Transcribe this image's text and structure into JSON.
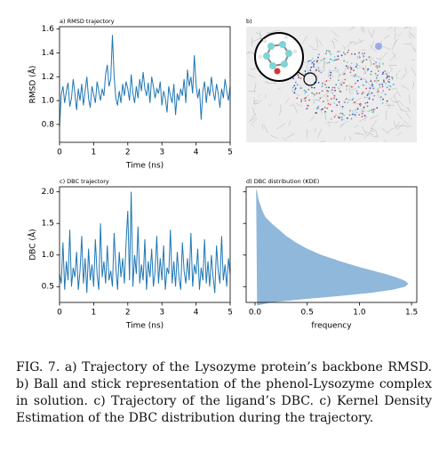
{
  "chart_data": [
    {
      "type": "line",
      "title": "a) RMSD trajectory",
      "xlabel": "Time (ns)",
      "ylabel": "RMSD (Å)",
      "color": "#1f77b4",
      "xlim": [
        0,
        5
      ],
      "xticks": [
        0,
        1,
        2,
        3,
        4,
        5
      ],
      "ylim": [
        0.65,
        1.62
      ],
      "yticks": [
        0.8,
        {
          "value": 1,
          "label": "1.0"
        },
        1.2,
        1.4,
        1.6
      ],
      "x": [
        0,
        0.05,
        0.1,
        0.15,
        0.2,
        0.25,
        0.3,
        0.35,
        0.4,
        0.45,
        0.5,
        0.55,
        0.6,
        0.65,
        0.7,
        0.75,
        0.8,
        0.85,
        0.9,
        0.95,
        1,
        1.05,
        1.1,
        1.15,
        1.2,
        1.25,
        1.3,
        1.35,
        1.4,
        1.45,
        1.5,
        1.55,
        1.6,
        1.65,
        1.7,
        1.75,
        1.8,
        1.85,
        1.9,
        1.95,
        2,
        2.05,
        2.1,
        2.15,
        2.2,
        2.25,
        2.3,
        2.35,
        2.4,
        2.45,
        2.5,
        2.55,
        2.6,
        2.65,
        2.7,
        2.75,
        2.8,
        2.85,
        2.9,
        2.95,
        3,
        3.05,
        3.1,
        3.15,
        3.2,
        3.25,
        3.3,
        3.35,
        3.4,
        3.45,
        3.5,
        3.55,
        3.6,
        3.65,
        3.7,
        3.75,
        3.8,
        3.85,
        3.9,
        3.95,
        4,
        4.05,
        4.1,
        4.15,
        4.2,
        4.25,
        4.3,
        4.35,
        4.4,
        4.45,
        4.5,
        4.55,
        4.6,
        4.65,
        4.7,
        4.75,
        4.8,
        4.85,
        4.9,
        4.95,
        5
      ],
      "values": [
        0.78,
        1.05,
        1.12,
        0.98,
        1.08,
        1.15,
        0.95,
        1.02,
        1.18,
        1.06,
        0.92,
        1.1,
        1.0,
        1.14,
        0.96,
        1.08,
        1.2,
        1.02,
        0.94,
        1.12,
        1.05,
        0.98,
        1.16,
        1.08,
        1.0,
        1.1,
        1.04,
        1.22,
        1.3,
        1.12,
        1.18,
        1.55,
        1.2,
        1.02,
        0.96,
        1.08,
        0.98,
        1.14,
        1.04,
        1.16,
        1.1,
        1.0,
        1.22,
        1.06,
        0.98,
        1.12,
        1.02,
        1.18,
        1.08,
        1.24,
        1.1,
        1.04,
        1.15,
        0.98,
        1.2,
        1.12,
        1.02,
        1.1,
        1.06,
        1.16,
        0.96,
        1.08,
        1.02,
        0.9,
        1.12,
        1.04,
        0.98,
        1.14,
        0.88,
        1.06,
        1.0,
        1.1,
        1.04,
        1.18,
        0.98,
        1.26,
        1.12,
        1.2,
        1.06,
        1.38,
        1.14,
        1.02,
        1.1,
        0.84,
        1.08,
        1.16,
        0.98,
        1.12,
        1.04,
        1.2,
        1.08,
        1.0,
        1.14,
        1.06,
        0.94,
        1.1,
        1.02,
        1.18,
        1.08,
        1.0,
        1.12
      ]
    },
    {
      "type": "line",
      "title": "c) DBC trajectory",
      "xlabel": "Time (ns)",
      "ylabel": "DBC (Å)",
      "color": "#1f77b4",
      "xlim": [
        0,
        5
      ],
      "xticks": [
        0,
        1,
        2,
        3,
        4,
        5
      ],
      "ylim": [
        0.25,
        2.08
      ],
      "yticks": [
        0.5,
        {
          "value": 1,
          "label": "1.0"
        },
        1.5,
        {
          "value": 2,
          "label": "2.0"
        }
      ],
      "x": [
        0,
        0.05,
        0.1,
        0.15,
        0.2,
        0.25,
        0.3,
        0.35,
        0.4,
        0.45,
        0.5,
        0.55,
        0.6,
        0.65,
        0.7,
        0.75,
        0.8,
        0.85,
        0.9,
        0.95,
        1,
        1.05,
        1.1,
        1.15,
        1.2,
        1.25,
        1.3,
        1.35,
        1.4,
        1.45,
        1.5,
        1.55,
        1.6,
        1.65,
        1.7,
        1.75,
        1.8,
        1.85,
        1.9,
        1.95,
        2,
        2.05,
        2.1,
        2.15,
        2.2,
        2.25,
        2.3,
        2.35,
        2.4,
        2.45,
        2.5,
        2.55,
        2.6,
        2.65,
        2.7,
        2.75,
        2.8,
        2.85,
        2.9,
        2.95,
        3,
        3.05,
        3.1,
        3.15,
        3.2,
        3.25,
        3.3,
        3.35,
        3.4,
        3.45,
        3.5,
        3.55,
        3.6,
        3.65,
        3.7,
        3.75,
        3.8,
        3.85,
        3.9,
        3.95,
        4,
        4.05,
        4.1,
        4.15,
        4.2,
        4.25,
        4.3,
        4.35,
        4.4,
        4.45,
        4.5,
        4.55,
        4.6,
        4.65,
        4.7,
        4.75,
        4.8,
        4.85,
        4.9,
        4.95,
        5
      ],
      "values": [
        0.7,
        0.55,
        1.2,
        0.45,
        0.9,
        0.6,
        1.4,
        0.5,
        0.8,
        0.65,
        1.05,
        0.45,
        0.75,
        1.3,
        0.55,
        0.95,
        0.4,
        1.1,
        0.6,
        0.85,
        0.5,
        1.25,
        0.7,
        0.45,
        1.5,
        0.65,
        0.9,
        0.55,
        1.15,
        0.6,
        0.75,
        0.5,
        1.35,
        0.8,
        0.45,
        1.05,
        0.65,
        0.95,
        0.55,
        1.2,
        1.7,
        0.6,
        2.0,
        0.5,
        1.0,
        0.7,
        1.45,
        0.55,
        0.85,
        0.6,
        1.25,
        0.45,
        0.9,
        0.65,
        1.1,
        0.5,
        0.75,
        1.3,
        0.55,
        0.95,
        0.6,
        1.15,
        0.45,
        0.8,
        0.7,
        1.4,
        0.55,
        0.9,
        0.5,
        1.05,
        0.65,
        0.45,
        1.2,
        0.75,
        0.55,
        0.95,
        0.6,
        1.35,
        0.5,
        0.85,
        0.7,
        1.1,
        0.45,
        0.8,
        0.6,
        1.25,
        0.55,
        0.9,
        0.5,
        1.0,
        0.65,
        0.4,
        1.15,
        0.75,
        0.55,
        1.3,
        0.6,
        0.85,
        0.5,
        0.95,
        0.7
      ]
    },
    {
      "type": "area",
      "orientation": "horizontal",
      "sharey": true,
      "title": "d) DBC distribution (KDE)",
      "xlabel": "frequency",
      "color": "#8fb8da",
      "xlim": [
        -0.085,
        1.55
      ],
      "xticks": [
        {
          "value": 0,
          "label": "0.0"
        },
        0.5,
        {
          "value": 1,
          "label": "1.0"
        },
        1.5
      ],
      "y": [
        0.2,
        0.25,
        0.3,
        0.35,
        0.4,
        0.45,
        0.5,
        0.55,
        0.6,
        0.65,
        0.7,
        0.8,
        0.9,
        1.0,
        1.1,
        1.2,
        1.3,
        1.4,
        1.5,
        1.6,
        1.7,
        1.8,
        1.9,
        2.0,
        2.05
      ],
      "values": [
        0.02,
        0.15,
        0.45,
        0.8,
        1.1,
        1.32,
        1.44,
        1.47,
        1.43,
        1.35,
        1.25,
        1.02,
        0.82,
        0.64,
        0.5,
        0.39,
        0.3,
        0.23,
        0.16,
        0.1,
        0.07,
        0.05,
        0.03,
        0.02,
        0.01
      ]
    }
  ],
  "image_panel": {
    "label": "b)"
  },
  "caption": "FIG. 7.   a) Trajectory of the Lysozyme protein’s backbone RMSD. b) Ball and stick representation of the phenol-Lysozyme complex in solution. c) Trajectory of the ligand’s DBC. c) Kernel Density Estimation of the DBC distribution during the trajectory."
}
